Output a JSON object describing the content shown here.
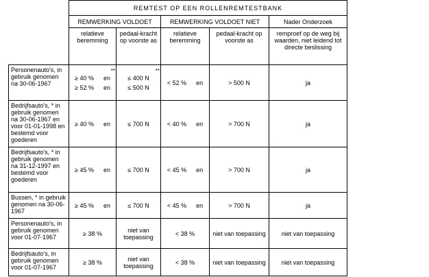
{
  "header": {
    "title": "REMTEST OP EEN ROLLENREMTESTBANK",
    "groups": [
      "REMWERKING VOLDOET",
      "REMWERKING VOLDOET NIET",
      "Nader Onderzoek"
    ],
    "subheaders": [
      "relatieve beremming",
      "pedaal-kracht op voorste as",
      "relatieve beremming",
      "pedaal-kracht op voorste as",
      "remproef op de weg bij waarden, niet leidend tot directe beslissing"
    ]
  },
  "rows": [
    {
      "label": "Personenauto's, in gebruik genomen na 30-06-1967",
      "cells": [
        {
          "mark": "**",
          "lines": [
            [
              "≥ 40 %",
              "en"
            ],
            [
              "≥ 52 %",
              "en"
            ]
          ]
        },
        {
          "mark": "**",
          "lines": [
            [
              "≤ 400 N"
            ],
            [
              "≤ 500 N"
            ]
          ]
        },
        {
          "lines": [
            [
              "< 52 %",
              "en"
            ]
          ]
        },
        {
          "lines": [
            [
              "> 500 N"
            ]
          ]
        },
        {
          "lines": [
            [
              "ja"
            ]
          ]
        }
      ]
    },
    {
      "label": "Bedrijfsauto's, * in gebruik genomen na 30-06-1967 en voor 01-01-1998 en bestemd voor goederen",
      "cells": [
        {
          "lines": [
            [
              "≥ 40 %",
              "en"
            ]
          ]
        },
        {
          "lines": [
            [
              "≤ 700 N"
            ]
          ]
        },
        {
          "lines": [
            [
              "< 40 %",
              "en"
            ]
          ]
        },
        {
          "lines": [
            [
              "> 700 N"
            ]
          ]
        },
        {
          "lines": [
            [
              "ja"
            ]
          ]
        }
      ]
    },
    {
      "label": "Bedrijfsauto's, * in gebruik genomen na 31-12-1997 en bestemd voor goederen",
      "cells": [
        {
          "lines": [
            [
              "≥ 45 %",
              "en"
            ]
          ]
        },
        {
          "lines": [
            [
              "≤ 700 N"
            ]
          ]
        },
        {
          "lines": [
            [
              "< 45 %",
              "en"
            ]
          ]
        },
        {
          "lines": [
            [
              "> 700 N"
            ]
          ]
        },
        {
          "lines": [
            [
              "ja"
            ]
          ]
        }
      ]
    },
    {
      "label": "Bussen, * in gebruik genomen na 30-06-1967",
      "cells": [
        {
          "lines": [
            [
              "≥ 45 %",
              "en"
            ]
          ]
        },
        {
          "lines": [
            [
              "≤ 700 N"
            ]
          ]
        },
        {
          "lines": [
            [
              "< 45 %",
              "en"
            ]
          ]
        },
        {
          "lines": [
            [
              "> 700 N"
            ]
          ]
        },
        {
          "lines": [
            [
              "ja"
            ]
          ]
        }
      ]
    },
    {
      "label": "Personenauto's, in gebruik genomen voor 01-07-1967",
      "cells": [
        {
          "lines": [
            [
              "≥ 38 %"
            ]
          ]
        },
        {
          "lines": [
            [
              "niet van toepassing"
            ]
          ]
        },
        {
          "lines": [
            [
              "< 38 %"
            ]
          ]
        },
        {
          "lines": [
            [
              "niet van toepassing"
            ]
          ]
        },
        {
          "lines": [
            [
              "niet van toepassing"
            ]
          ]
        }
      ]
    },
    {
      "label": "Bedrijfsauto's, in gebruik genomen voor 01-07-1967",
      "cells": [
        {
          "lines": [
            [
              "≥ 38 %"
            ]
          ]
        },
        {
          "lines": [
            [
              "niet van toepassing"
            ]
          ]
        },
        {
          "lines": [
            [
              "< 38 %"
            ]
          ]
        },
        {
          "lines": [
            [
              "niet van toepassing"
            ]
          ]
        },
        {
          "lines": [
            [
              "niet van toepassing"
            ]
          ]
        }
      ]
    }
  ]
}
